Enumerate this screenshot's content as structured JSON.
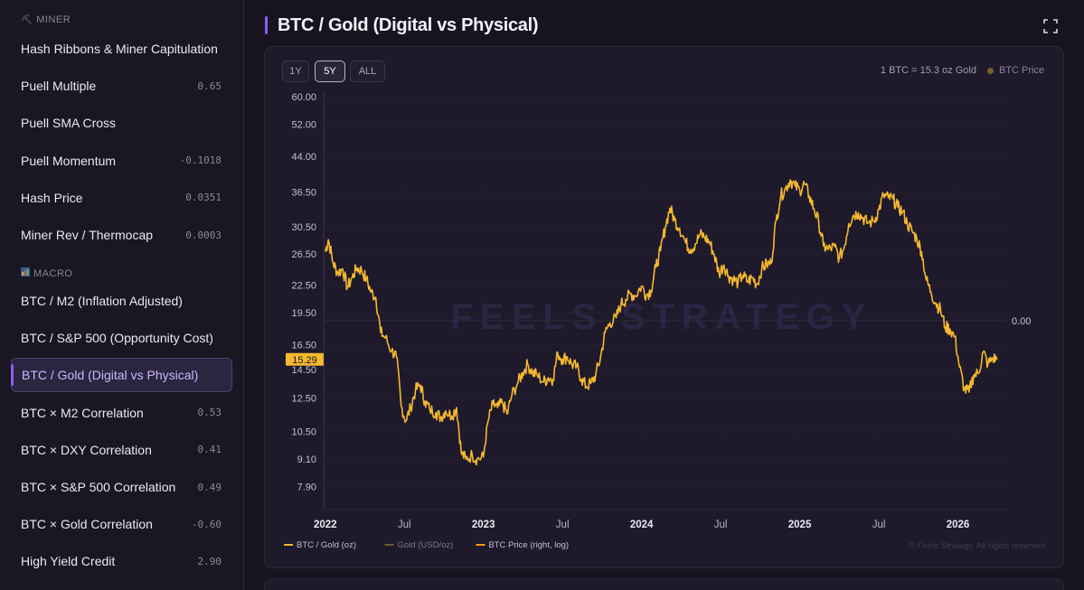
{
  "sidebar": {
    "sections": [
      {
        "label": "MINER",
        "icon": "pick-icon"
      },
      {
        "label": "MACRO",
        "icon": "bar-chart-icon"
      }
    ],
    "miner_items": [
      {
        "label": "Hash Ribbons & Miner Capitulation",
        "value": ""
      },
      {
        "label": "Puell Multiple",
        "value": "0.65"
      },
      {
        "label": "Puell SMA Cross",
        "value": ""
      },
      {
        "label": "Puell Momentum",
        "value": "-0.1018"
      },
      {
        "label": "Hash Price",
        "value": "0.0351"
      },
      {
        "label": "Miner Rev / Thermocap",
        "value": "0.0003"
      }
    ],
    "macro_items": [
      {
        "label": "BTC / M2 (Inflation Adjusted)",
        "value": ""
      },
      {
        "label": "BTC / S&P 500 (Opportunity Cost)",
        "value": ""
      },
      {
        "label": "BTC / Gold (Digital vs Physical)",
        "value": "",
        "active": true
      },
      {
        "label": "BTC × M2 Correlation",
        "value": "0.53"
      },
      {
        "label": "BTC × DXY Correlation",
        "value": "0.41"
      },
      {
        "label": "BTC × S&P 500 Correlation",
        "value": "0.49"
      },
      {
        "label": "BTC × Gold Correlation",
        "value": "-0.60"
      },
      {
        "label": "High Yield Credit",
        "value": "2.90"
      }
    ]
  },
  "header": {
    "title": "BTC / Gold (Digital vs Physical)"
  },
  "controls": {
    "ranges": [
      "1Y",
      "5Y",
      "ALL"
    ],
    "active_range": "5Y",
    "ratio_info": "1 BTC = 15.3 oz Gold",
    "legend_top": "BTC Price"
  },
  "chart_data": {
    "type": "line",
    "watermark": "FEELS STRATEGY",
    "copyright": "© Feels Strategy. All rights reserved",
    "y_ticks": [
      "60.00",
      "52.00",
      "44.00",
      "36.50",
      "30.50",
      "26.50",
      "22.50",
      "19.50",
      "16.50",
      "14.50",
      "12.50",
      "10.50",
      "9.10",
      "7.90"
    ],
    "y_tick_values": [
      60,
      52,
      44,
      36.5,
      30.5,
      26.5,
      22.5,
      19.5,
      16.5,
      14.5,
      12.5,
      10.5,
      9.1,
      7.9
    ],
    "ylim": [
      7.0,
      62
    ],
    "y_scale": "log",
    "right_axis_label": "0.00",
    "current_value_label": "15.29",
    "current_value": 15.29,
    "x_ticks": [
      {
        "label": "2022",
        "t": 2022.0,
        "bold": true
      },
      {
        "label": "Jul",
        "t": 2022.5,
        "bold": false
      },
      {
        "label": "2023",
        "t": 2023.0,
        "bold": true
      },
      {
        "label": "Jul",
        "t": 2023.5,
        "bold": false
      },
      {
        "label": "2024",
        "t": 2024.0,
        "bold": true
      },
      {
        "label": "Jul",
        "t": 2024.5,
        "bold": false
      },
      {
        "label": "2025",
        "t": 2025.0,
        "bold": true
      },
      {
        "label": "Jul",
        "t": 2025.5,
        "bold": false
      },
      {
        "label": "2026",
        "t": 2026.0,
        "bold": true
      }
    ],
    "xlim": [
      2021.99,
      2026.3
    ],
    "series": [
      {
        "name": "BTC / Gold (oz)",
        "color": "#f5b82e",
        "points": [
          [
            2022.0,
            26.8
          ],
          [
            2022.02,
            28.5
          ],
          [
            2022.05,
            25.2
          ],
          [
            2022.08,
            24.0
          ],
          [
            2022.11,
            24.5
          ],
          [
            2022.14,
            22.2
          ],
          [
            2022.17,
            23.4
          ],
          [
            2022.2,
            24.6
          ],
          [
            2022.23,
            24.3
          ],
          [
            2022.26,
            23.2
          ],
          [
            2022.29,
            21.7
          ],
          [
            2022.32,
            21.1
          ],
          [
            2022.35,
            17.6
          ],
          [
            2022.38,
            17.1
          ],
          [
            2022.42,
            16.0
          ],
          [
            2022.45,
            15.5
          ],
          [
            2022.48,
            12.0
          ],
          [
            2022.51,
            11.1
          ],
          [
            2022.54,
            11.9
          ],
          [
            2022.57,
            13.0
          ],
          [
            2022.6,
            13.4
          ],
          [
            2022.63,
            12.3
          ],
          [
            2022.66,
            11.8
          ],
          [
            2022.7,
            11.6
          ],
          [
            2022.73,
            11.3
          ],
          [
            2022.76,
            11.7
          ],
          [
            2022.8,
            11.4
          ],
          [
            2022.83,
            11.9
          ],
          [
            2022.86,
            9.4
          ],
          [
            2022.89,
            9.1
          ],
          [
            2022.93,
            9.3
          ],
          [
            2022.96,
            9.1
          ],
          [
            2023.0,
            9.2
          ],
          [
            2023.03,
            11.1
          ],
          [
            2023.06,
            12.1
          ],
          [
            2023.09,
            11.9
          ],
          [
            2023.12,
            12.2
          ],
          [
            2023.15,
            11.5
          ],
          [
            2023.18,
            12.7
          ],
          [
            2023.22,
            13.6
          ],
          [
            2023.25,
            14.3
          ],
          [
            2023.28,
            14.9
          ],
          [
            2023.31,
            14.3
          ],
          [
            2023.34,
            14.1
          ],
          [
            2023.38,
            13.6
          ],
          [
            2023.41,
            13.9
          ],
          [
            2023.44,
            13.8
          ],
          [
            2023.47,
            15.8
          ],
          [
            2023.5,
            15.3
          ],
          [
            2023.53,
            15.5
          ],
          [
            2023.56,
            14.9
          ],
          [
            2023.59,
            14.7
          ],
          [
            2023.62,
            13.8
          ],
          [
            2023.65,
            13.3
          ],
          [
            2023.68,
            13.5
          ],
          [
            2023.71,
            14.1
          ],
          [
            2023.74,
            15.4
          ],
          [
            2023.77,
            17.6
          ],
          [
            2023.8,
            18.5
          ],
          [
            2023.84,
            19.0
          ],
          [
            2023.87,
            20.4
          ],
          [
            2023.9,
            20.9
          ],
          [
            2023.93,
            21.5
          ],
          [
            2023.96,
            21.3
          ],
          [
            2024.0,
            22.4
          ],
          [
            2024.03,
            21.4
          ],
          [
            2024.06,
            21.9
          ],
          [
            2024.09,
            24.7
          ],
          [
            2024.12,
            26.9
          ],
          [
            2024.15,
            30.5
          ],
          [
            2024.18,
            33.6
          ],
          [
            2024.21,
            31.5
          ],
          [
            2024.24,
            30.3
          ],
          [
            2024.28,
            28.0
          ],
          [
            2024.31,
            27.1
          ],
          [
            2024.34,
            27.9
          ],
          [
            2024.37,
            29.3
          ],
          [
            2024.4,
            28.9
          ],
          [
            2024.43,
            28.1
          ],
          [
            2024.46,
            26.3
          ],
          [
            2024.49,
            23.9
          ],
          [
            2024.52,
            25.0
          ],
          [
            2024.55,
            23.6
          ],
          [
            2024.58,
            23.2
          ],
          [
            2024.61,
            22.8
          ],
          [
            2024.64,
            23.7
          ],
          [
            2024.67,
            22.9
          ],
          [
            2024.7,
            23.4
          ],
          [
            2024.73,
            22.6
          ],
          [
            2024.76,
            24.5
          ],
          [
            2024.79,
            25.1
          ],
          [
            2024.82,
            25.2
          ],
          [
            2024.85,
            31.4
          ],
          [
            2024.88,
            35.8
          ],
          [
            2024.91,
            37.2
          ],
          [
            2024.94,
            38.9
          ],
          [
            2024.97,
            37.7
          ],
          [
            2025.0,
            36.9
          ],
          [
            2025.03,
            38.1
          ],
          [
            2025.06,
            35.8
          ],
          [
            2025.09,
            33.5
          ],
          [
            2025.12,
            31.2
          ],
          [
            2025.15,
            27.6
          ],
          [
            2025.18,
            27.1
          ],
          [
            2025.22,
            27.5
          ],
          [
            2025.25,
            25.9
          ],
          [
            2025.28,
            27.3
          ],
          [
            2025.31,
            31.0
          ],
          [
            2025.34,
            32.4
          ],
          [
            2025.37,
            32.8
          ],
          [
            2025.4,
            31.9
          ],
          [
            2025.43,
            31.1
          ],
          [
            2025.47,
            31.4
          ],
          [
            2025.5,
            33.3
          ],
          [
            2025.53,
            35.9
          ],
          [
            2025.56,
            35.5
          ],
          [
            2025.59,
            35.2
          ],
          [
            2025.62,
            33.8
          ],
          [
            2025.65,
            33.0
          ],
          [
            2025.68,
            31.0
          ],
          [
            2025.71,
            29.8
          ],
          [
            2025.74,
            28.7
          ],
          [
            2025.77,
            26.8
          ],
          [
            2025.8,
            23.1
          ],
          [
            2025.83,
            21.7
          ],
          [
            2025.86,
            20.5
          ],
          [
            2025.89,
            19.8
          ],
          [
            2025.92,
            18.1
          ],
          [
            2025.95,
            17.9
          ],
          [
            2025.98,
            17.2
          ],
          [
            2026.01,
            14.7
          ],
          [
            2026.04,
            13.1
          ],
          [
            2026.07,
            12.9
          ],
          [
            2026.1,
            14.1
          ],
          [
            2026.13,
            14.2
          ],
          [
            2026.16,
            15.9
          ],
          [
            2026.19,
            14.9
          ],
          [
            2026.22,
            15.4
          ],
          [
            2026.25,
            15.29
          ]
        ]
      },
      {
        "name": "Gold (USD/oz)",
        "color": "#6b5a2a",
        "points": []
      },
      {
        "name": "BTC Price (right, log)",
        "color": "#f59e0b",
        "points": []
      }
    ]
  }
}
